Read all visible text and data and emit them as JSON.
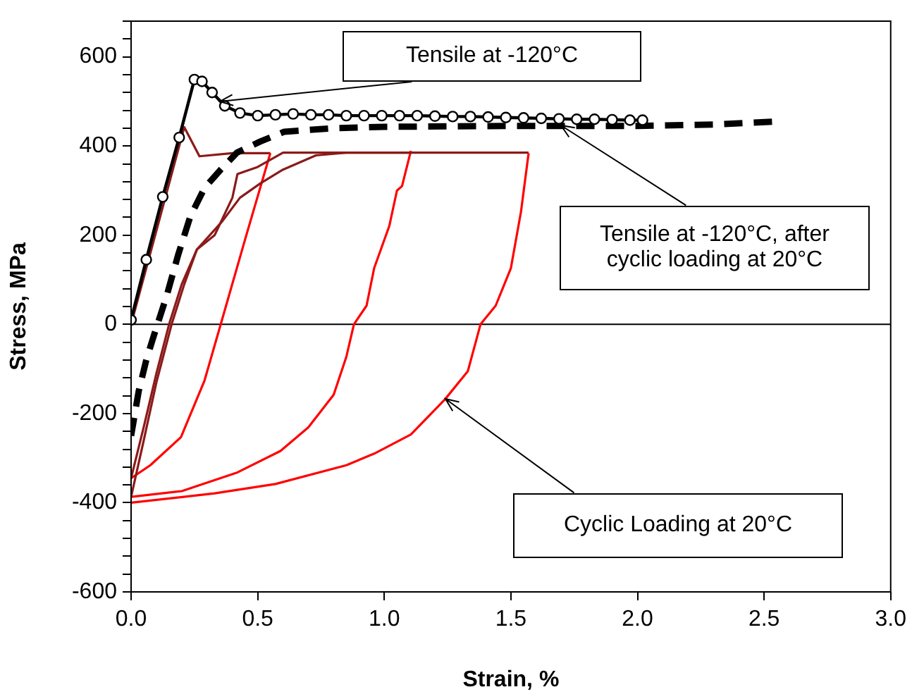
{
  "chart_data": {
    "type": "line",
    "xlabel": "Strain, %",
    "ylabel": "Stress, MPa",
    "xlim": [
      0,
      3
    ],
    "ylim": [
      -600,
      680
    ],
    "xticks": [
      {
        "value": 0,
        "label": "0.0"
      },
      {
        "value": 0.5,
        "label": "0.5"
      },
      {
        "value": 1,
        "label": "1.0"
      },
      {
        "value": 1.5,
        "label": "1.5"
      },
      {
        "value": 2,
        "label": "2.0"
      },
      {
        "value": 2.5,
        "label": "2.5"
      },
      {
        "value": 3,
        "label": "3.0"
      }
    ],
    "yticks": [
      -600,
      {
        "value": -560,
        "label": null
      },
      {
        "value": -520,
        "label": null
      },
      {
        "value": -480,
        "label": null
      },
      {
        "value": -440,
        "label": null
      },
      -400,
      {
        "value": -360,
        "label": null
      },
      {
        "value": -320,
        "label": null
      },
      {
        "value": -280,
        "label": null
      },
      {
        "value": -240,
        "label": null
      },
      -200,
      {
        "value": -160,
        "label": null
      },
      {
        "value": -120,
        "label": null
      },
      {
        "value": -80,
        "label": null
      },
      {
        "value": -40,
        "label": null
      },
      0,
      {
        "value": 40,
        "label": null
      },
      {
        "value": 80,
        "label": null
      },
      {
        "value": 120,
        "label": null
      },
      {
        "value": 160,
        "label": null
      },
      200,
      {
        "value": 240,
        "label": null
      },
      {
        "value": 280,
        "label": null
      },
      {
        "value": 320,
        "label": null
      },
      {
        "value": 360,
        "label": null
      },
      400,
      {
        "value": 440,
        "label": null
      },
      {
        "value": 480,
        "label": null
      },
      {
        "value": 520,
        "label": null
      },
      {
        "value": 560,
        "label": null
      },
      600,
      {
        "value": 640,
        "label": null
      },
      {
        "value": 680,
        "label": null
      }
    ],
    "ref_lines": [
      {
        "axis": "y",
        "value": 0,
        "color": "#000000"
      }
    ],
    "series": [
      {
        "color": "#8b1a1a",
        "marker": "none",
        "x": [
          0,
          0.1,
          0.21,
          0.27,
          0.4,
          0.55
        ],
        "values": [
          0,
          210,
          442,
          377,
          384,
          384
        ]
      },
      {
        "color": "#ff0000",
        "marker": "none",
        "x": [
          0.55,
          0.45,
          0.354,
          0.29,
          0.197,
          0.076,
          0
        ],
        "values": [
          384,
          190,
          0,
          -126,
          -253,
          -316,
          -345
        ]
      },
      {
        "color": "#8b1a1a",
        "marker": "none",
        "x": [
          0,
          0.05,
          0.1,
          0.15,
          0.2,
          0.26,
          0.33,
          0.4,
          0.42,
          0.5,
          0.6,
          0.8,
          1.1
        ],
        "values": [
          -345,
          -230,
          -110,
          0,
          90,
          168,
          200,
          284,
          337,
          353,
          385,
          385,
          385
        ]
      },
      {
        "color": "#ff0000",
        "marker": "none",
        "x": [
          1.105,
          1.07,
          1.05,
          1.02,
          0.96,
          0.93,
          0.88,
          0.85,
          0.8,
          0.7,
          0.59,
          0.42,
          0.2,
          0
        ],
        "values": [
          389,
          310,
          300,
          221,
          126,
          42,
          0,
          -73,
          -158,
          -231,
          -284,
          -332,
          -374,
          -387
        ]
      },
      {
        "color": "#8b1a1a",
        "marker": "none",
        "x": [
          0,
          0.05,
          0.1,
          0.16,
          0.21,
          0.26,
          0.36,
          0.43,
          0.51,
          0.6,
          0.73,
          0.85,
          1.2,
          1.57
        ],
        "values": [
          -387,
          -260,
          -130,
          0,
          90,
          168,
          231,
          284,
          316,
          347,
          379,
          385,
          385,
          385
        ]
      },
      {
        "color": "#ff0000",
        "marker": "none",
        "x": [
          1.57,
          1.54,
          1.5,
          1.44,
          1.38,
          1.33,
          1.24,
          1.105,
          0.96,
          0.85,
          0.57,
          0.33,
          0
        ],
        "values": [
          384,
          253,
          126,
          42,
          0,
          -105,
          -168,
          -247,
          -290,
          -316,
          -358,
          -379,
          -400
        ]
      },
      {
        "color": "#000000",
        "marker": "none",
        "line_style": "dashed",
        "x": [
          0,
          0.03,
          0.06,
          0.09,
          0.14,
          0.187,
          0.234,
          0.29,
          0.354,
          0.418,
          0.51,
          0.605,
          0.8,
          1,
          1.5,
          2,
          2.3,
          2.55
        ],
        "values": [
          -250,
          -150,
          -80,
          -25,
          63,
          158,
          242,
          306,
          347,
          385,
          410,
          432,
          440,
          443,
          445,
          445,
          448,
          455
        ]
      },
      {
        "color": "#000000",
        "marker": "circle",
        "x": [
          0,
          0.06,
          0.125,
          0.19,
          0.25,
          0.28,
          0.32,
          0.37,
          0.43,
          0.5,
          0.57,
          0.64,
          0.71,
          0.78,
          0.85,
          0.92,
          0.99,
          1.06,
          1.13,
          1.2,
          1.27,
          1.34,
          1.41,
          1.48,
          1.55,
          1.62,
          1.69,
          1.76,
          1.83,
          1.9,
          1.97,
          2.02
        ],
        "values": [
          10,
          145,
          286,
          419,
          549,
          545,
          520,
          490,
          474,
          468,
          470,
          472,
          470,
          470,
          468,
          468,
          468,
          468,
          468,
          467,
          466,
          466,
          465,
          464,
          463,
          462,
          461,
          460,
          460,
          459,
          458,
          458
        ]
      }
    ],
    "annotations": [
      {
        "text": "Tensile at -120°C",
        "x": 0.35,
        "y": 500
      },
      {
        "text": "Tensile at -120°C, after cyclic loading at 20°C",
        "x": 1.7,
        "y": 445
      },
      {
        "text": "Cyclic Loading at 20°C",
        "x": 1.24,
        "y": -168
      }
    ]
  }
}
